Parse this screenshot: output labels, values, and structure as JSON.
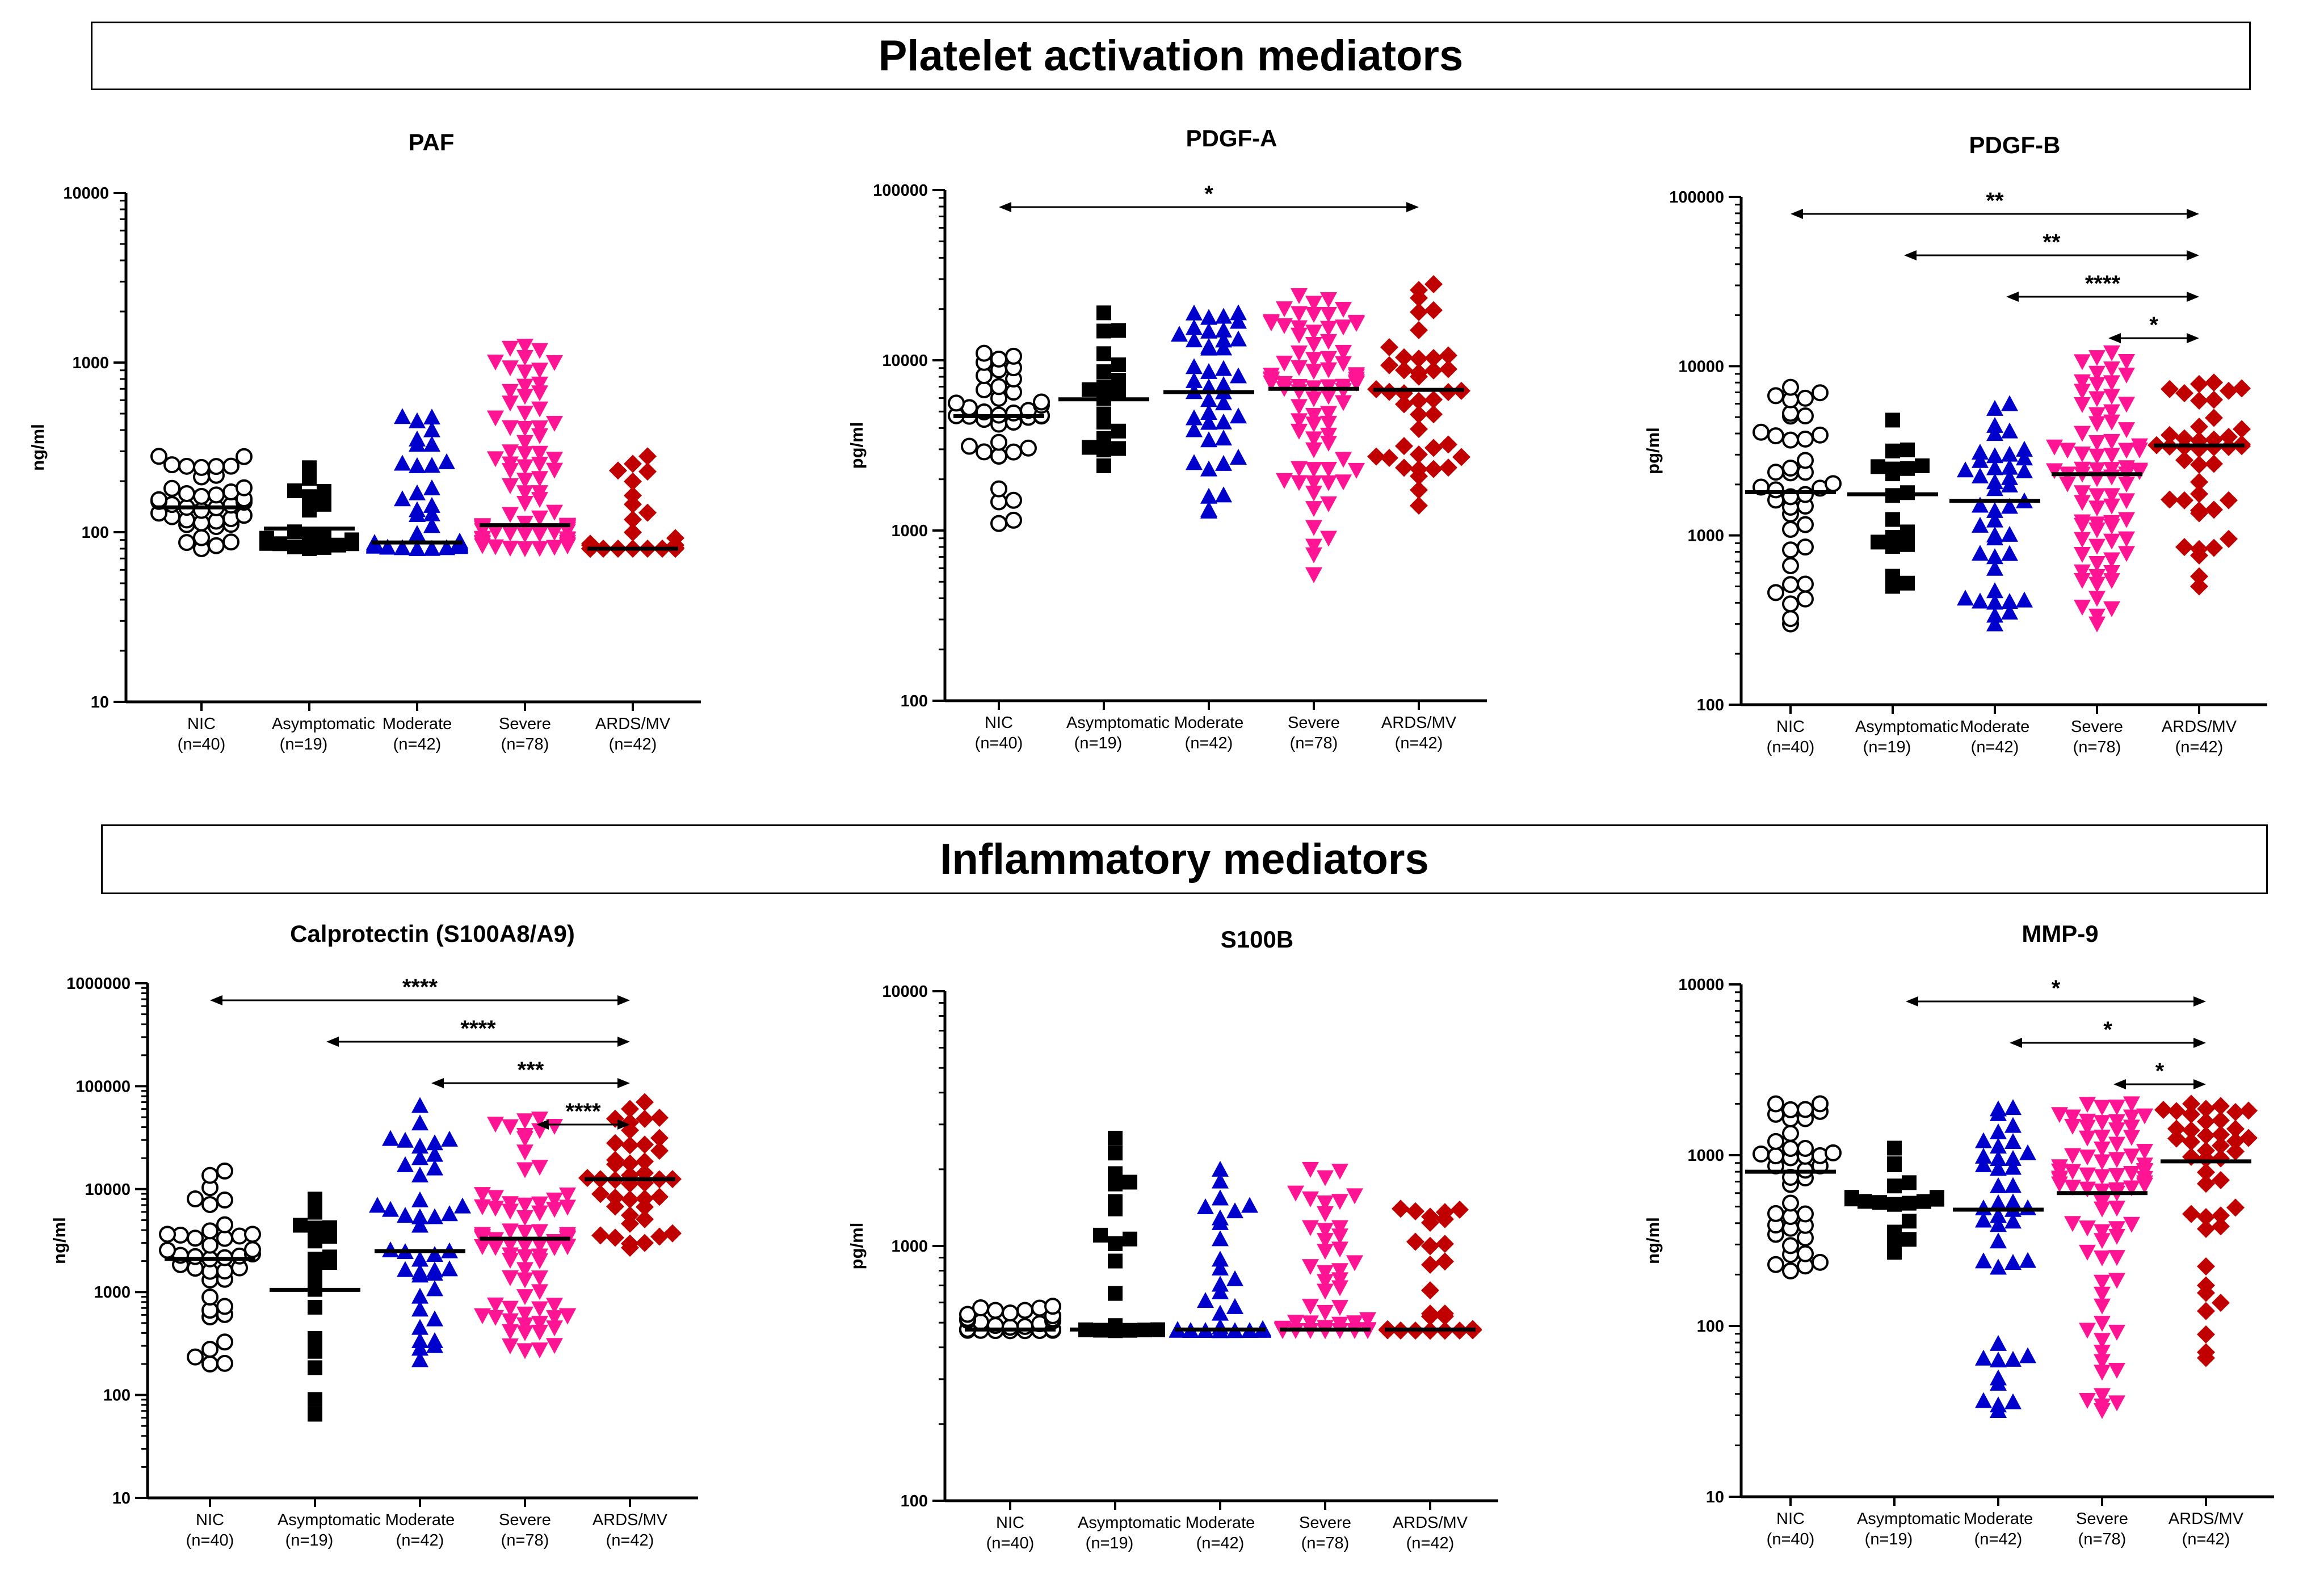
{
  "sections": {
    "platelet": "Platelet activation mediators",
    "inflammatory": "Inflammatory mediators"
  },
  "groups": [
    {
      "name": "NIC",
      "n": "(n=40)",
      "count": 40,
      "color": "#000000",
      "marker": "open-circle"
    },
    {
      "name": "Asymptomatic",
      "n": "(n=19)",
      "count": 19,
      "color": "#000000",
      "marker": "filled-square"
    },
    {
      "name": "Moderate",
      "n": "(n=42)",
      "count": 42,
      "color": "#0000cc",
      "marker": "filled-triangle-up"
    },
    {
      "name": "Severe",
      "n": "(n=78)",
      "count": 78,
      "color": "#ff1493",
      "marker": "filled-triangle-down"
    },
    {
      "name": "ARDS/MV",
      "n": "(n=42)",
      "count": 42,
      "color": "#c00000",
      "marker": "filled-diamond"
    }
  ],
  "chart_data": [
    {
      "type": "scatter",
      "title": "PAF",
      "ylabel": "ng/ml",
      "yscale": "log",
      "ylim": [
        10,
        10000
      ],
      "yticks": [
        "10",
        "100",
        "1000",
        "10000"
      ],
      "medians": [
        140,
        105,
        87,
        110,
        80
      ],
      "ranges": [
        [
          80,
          280
        ],
        [
          80,
          240
        ],
        [
          80,
          480
        ],
        [
          80,
          1250
        ],
        [
          80,
          280
        ]
      ],
      "comparisons": []
    },
    {
      "type": "scatter",
      "title": "PDGF-A",
      "ylabel": "pg/ml",
      "yscale": "log",
      "ylim": [
        100,
        100000
      ],
      "yticks": [
        "100",
        "1000",
        "10000",
        "100000"
      ],
      "medians": [
        4700,
        5900,
        6500,
        6800,
        6700
      ],
      "ranges": [
        [
          1100,
          11000
        ],
        [
          2400,
          19000
        ],
        [
          1300,
          19000
        ],
        [
          550,
          24000
        ],
        [
          1400,
          28000
        ]
      ],
      "comparisons": [
        {
          "from": 0,
          "to": 4,
          "label": "*"
        }
      ]
    },
    {
      "type": "scatter",
      "title": "PDGF-B",
      "ylabel": "pg/ml",
      "yscale": "log",
      "ylim": [
        100,
        100000
      ],
      "yticks": [
        "100",
        "1000",
        "10000",
        "100000"
      ],
      "medians": [
        1800,
        1750,
        1600,
        2300,
        3400
      ],
      "ranges": [
        [
          300,
          7500
        ],
        [
          500,
          4800
        ],
        [
          300,
          6000
        ],
        [
          300,
          12000
        ],
        [
          500,
          8000
        ]
      ],
      "comparisons": [
        {
          "from": 0,
          "to": 4,
          "label": "**"
        },
        {
          "from": 1,
          "to": 4,
          "label": "**"
        },
        {
          "from": 2,
          "to": 4,
          "label": "****"
        },
        {
          "from": 3,
          "to": 4,
          "label": "*"
        }
      ]
    },
    {
      "type": "scatter",
      "title": "Calprotectin (S100A8/A9)",
      "ylabel": "ng/ml",
      "yscale": "log",
      "ylim": [
        10,
        1000000
      ],
      "yticks": [
        "10",
        "100",
        "1000",
        "10000",
        "100000",
        "1000000"
      ],
      "medians": [
        2100,
        1050,
        2500,
        3300,
        12500
      ],
      "ranges": [
        [
          200,
          15000
        ],
        [
          65,
          8000
        ],
        [
          220,
          65000
        ],
        [
          270,
          48000
        ],
        [
          2700,
          70000
        ]
      ],
      "comparisons": [
        {
          "from": 0,
          "to": 4,
          "label": "****"
        },
        {
          "from": 1,
          "to": 4,
          "label": "****"
        },
        {
          "from": 2,
          "to": 4,
          "label": "***"
        },
        {
          "from": 3,
          "to": 4,
          "label": "****"
        }
      ]
    },
    {
      "type": "scatter",
      "title": "S100B",
      "ylabel": "pg/ml",
      "yscale": "log",
      "ylim": [
        100,
        10000
      ],
      "yticks": [
        "100",
        "1000",
        "10000"
      ],
      "medians": [
        470,
        470,
        470,
        470,
        470
      ],
      "ranges": [
        [
          465,
          580
        ],
        [
          465,
          2650
        ],
        [
          465,
          2000
        ],
        [
          465,
          2000
        ],
        [
          465,
          1400
        ]
      ],
      "comparisons": []
    },
    {
      "type": "scatter",
      "title": "MMP-9",
      "ylabel": "ng/ml",
      "yscale": "log",
      "ylim": [
        10,
        10000
      ],
      "yticks": [
        "10",
        "100",
        "1000",
        "10000"
      ],
      "medians": [
        800,
        530,
        480,
        600,
        920
      ],
      "ranges": [
        [
          210,
          2000
        ],
        [
          270,
          1100
        ],
        [
          32,
          1900
        ],
        [
          32,
          2000
        ],
        [
          65,
          2000
        ]
      ],
      "comparisons": [
        {
          "from": 1,
          "to": 4,
          "label": "*"
        },
        {
          "from": 2,
          "to": 4,
          "label": "*"
        },
        {
          "from": 3,
          "to": 4,
          "label": "*"
        }
      ]
    }
  ]
}
